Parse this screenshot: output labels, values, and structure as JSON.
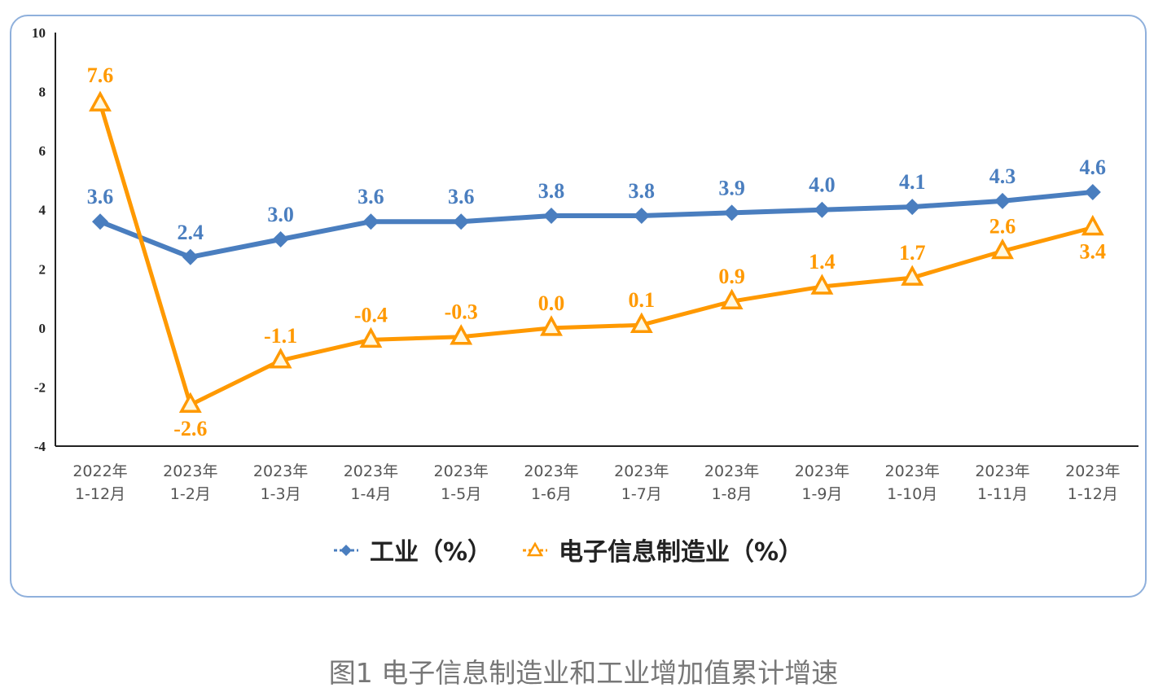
{
  "chart_data": {
    "type": "line",
    "title": "",
    "caption": "图1 电子信息制造业和工业增加值累计增速",
    "categories": [
      [
        "2022年",
        "1-12月"
      ],
      [
        "2023年",
        "1-2月"
      ],
      [
        "2023年",
        "1-3月"
      ],
      [
        "2023年",
        "1-4月"
      ],
      [
        "2023年",
        "1-5月"
      ],
      [
        "2023年",
        "1-6月"
      ],
      [
        "2023年",
        "1-7月"
      ],
      [
        "2023年",
        "1-8月"
      ],
      [
        "2023年",
        "1-9月"
      ],
      [
        "2023年",
        "1-10月"
      ],
      [
        "2023年",
        "1-11月"
      ],
      [
        "2023年",
        "1-12月"
      ]
    ],
    "ylim": [
      -4,
      10
    ],
    "yticks": [
      -4,
      -2,
      0,
      2,
      4,
      6,
      8,
      10
    ],
    "grid": false,
    "legend_position": "bottom",
    "series": [
      {
        "name": "工业（%）",
        "color": "#4a7ebf",
        "marker": "diamond",
        "values": [
          3.6,
          2.4,
          3.0,
          3.6,
          3.6,
          3.8,
          3.8,
          3.9,
          4.0,
          4.1,
          4.3,
          4.6
        ],
        "labels": [
          "3.6",
          "2.4",
          "3.0",
          "3.6",
          "3.6",
          "3.8",
          "3.8",
          "3.9",
          "4.0",
          "4.1",
          "4.3",
          "4.6"
        ]
      },
      {
        "name": "电子信息制造业（%）",
        "color": "#ff9900",
        "marker": "triangle",
        "values": [
          7.6,
          -2.6,
          -1.1,
          -0.4,
          -0.3,
          0.0,
          0.1,
          0.9,
          1.4,
          1.7,
          2.6,
          3.4
        ],
        "labels": [
          "7.6",
          "-2.6",
          "-1.1",
          "-0.4",
          "-0.3",
          "0.0",
          "0.1",
          "0.9",
          "1.4",
          "1.7",
          "2.6",
          "3.4"
        ]
      }
    ]
  }
}
